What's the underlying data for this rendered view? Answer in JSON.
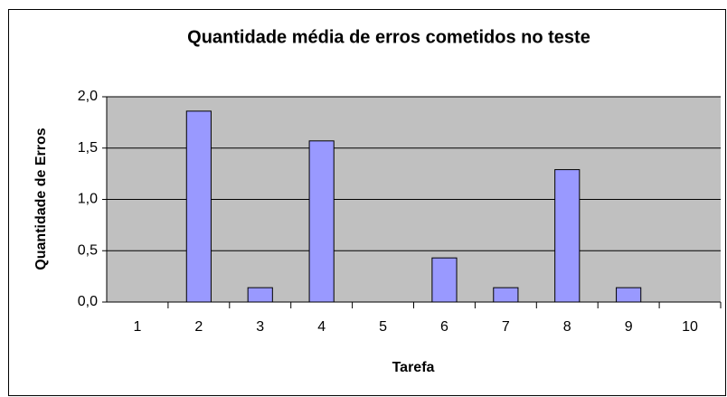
{
  "chart_data": {
    "type": "bar",
    "title": "Quantidade média de erros cometidos no teste",
    "x_label": "Tarefa",
    "y_label": "Quantidade de Erros",
    "categories": [
      "1",
      "2",
      "3",
      "4",
      "5",
      "6",
      "7",
      "8",
      "9",
      "10"
    ],
    "values": [
      0,
      1.86,
      0.14,
      1.57,
      0,
      0.43,
      0.14,
      1.29,
      0.14,
      0
    ],
    "color": "#9999ff",
    "ylim": [
      0,
      2
    ],
    "yticks": [
      {
        "value": 0,
        "label": "0,0"
      },
      {
        "value": 0.5,
        "label": "0,5"
      },
      {
        "value": 1,
        "label": "1,0"
      },
      {
        "value": 1.5,
        "label": "1,5"
      },
      {
        "value": 2,
        "label": "2,0"
      }
    ],
    "grid": true
  }
}
